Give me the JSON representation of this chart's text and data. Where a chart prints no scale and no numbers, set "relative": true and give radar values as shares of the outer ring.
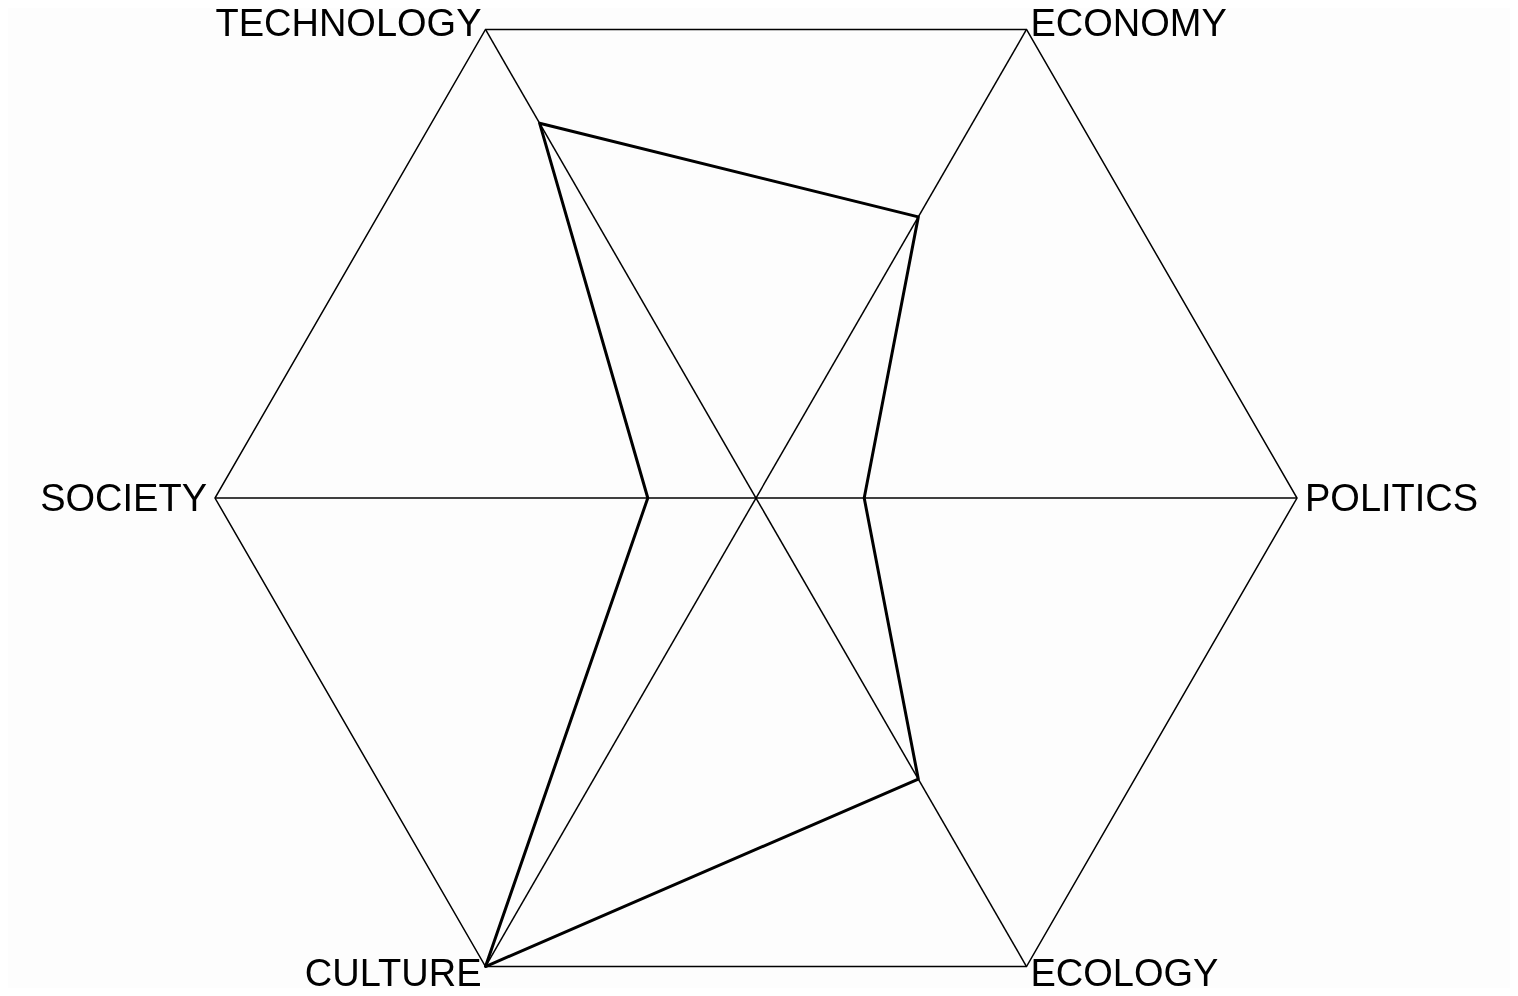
{
  "chart_data": {
    "type": "radar",
    "categories": [
      "ECONOMY",
      "POLITICS",
      "ECOLOGY",
      "CULTURE",
      "SOCIETY",
      "TECHNOLOGY"
    ],
    "relative": true,
    "series": [
      {
        "color": "#000000",
        "values": [
          0.6,
          0.2,
          0.6,
          1.0,
          0.2,
          0.8
        ]
      }
    ],
    "legend": false,
    "marker": "none"
  }
}
